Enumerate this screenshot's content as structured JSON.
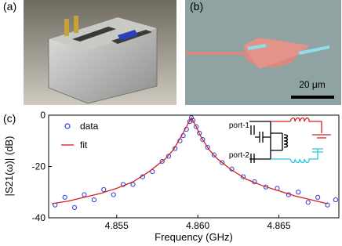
{
  "panel_labels": [
    "(a)",
    "(b)",
    "(c)"
  ],
  "micrograph": {
    "scale_bar": "20 μm"
  },
  "inset": {
    "port1": "port-1",
    "port2": "port-2"
  },
  "chart_data": {
    "type": "scatter",
    "xlabel": "Frequency (GHz)",
    "ylabel": "|S21(ω)| (dB)",
    "xlim": [
      4.8508,
      4.8687
    ],
    "ylim": [
      -40,
      0
    ],
    "xticks": [
      4.855,
      {
        "value": 4.86,
        "label": "4.860"
      },
      4.865
    ],
    "yticks": [
      -40,
      -20,
      0
    ],
    "legend": "upper left",
    "series": [
      {
        "name": "data",
        "color": "#2b3fd6",
        "marker": "circle",
        "x": [
          4.8512,
          4.8518,
          4.8524,
          4.853,
          4.8536,
          4.8542,
          4.8548,
          4.8554,
          4.856,
          4.8566,
          4.8572,
          4.8578,
          4.8582,
          4.8586,
          4.8589,
          4.8591,
          4.8593,
          4.8595,
          4.8596,
          4.8597,
          4.8599,
          4.8601,
          4.8603,
          4.8606,
          4.861,
          4.8615,
          4.8621,
          4.8628,
          4.8635,
          4.8642,
          4.8649,
          4.8656,
          4.8662,
          4.8668,
          4.8674,
          4.868,
          4.8685
        ],
        "values": [
          -35,
          -32,
          -36,
          -31,
          -33,
          -29,
          -31,
          -27,
          -27,
          -24,
          -22,
          -18,
          -16,
          -13,
          -10,
          -8,
          -5.5,
          -2.5,
          -1,
          -2,
          -4.5,
          -7,
          -9.5,
          -12.5,
          -15.5,
          -18.5,
          -21,
          -24,
          -26,
          -28,
          -28.5,
          -31,
          -30,
          -34,
          -32,
          -35,
          -33
        ]
      },
      {
        "name": "fit",
        "color": "#d62020",
        "marker": "line",
        "x": [
          4.851,
          4.852,
          4.853,
          4.854,
          4.855,
          4.856,
          4.857,
          4.858,
          4.8585,
          4.859,
          4.8593,
          4.8596,
          4.8599,
          4.8602,
          4.8607,
          4.8612,
          4.862,
          4.863,
          4.864,
          4.865,
          4.866,
          4.867,
          4.868
        ],
        "values": [
          -34.5,
          -33.5,
          -32,
          -30.5,
          -28.5,
          -26,
          -22,
          -17,
          -13.5,
          -8,
          -4.5,
          -1,
          -4.5,
          -8.5,
          -13.5,
          -17,
          -21,
          -25,
          -27.5,
          -29.5,
          -31.5,
          -33,
          -34.5
        ]
      }
    ]
  }
}
